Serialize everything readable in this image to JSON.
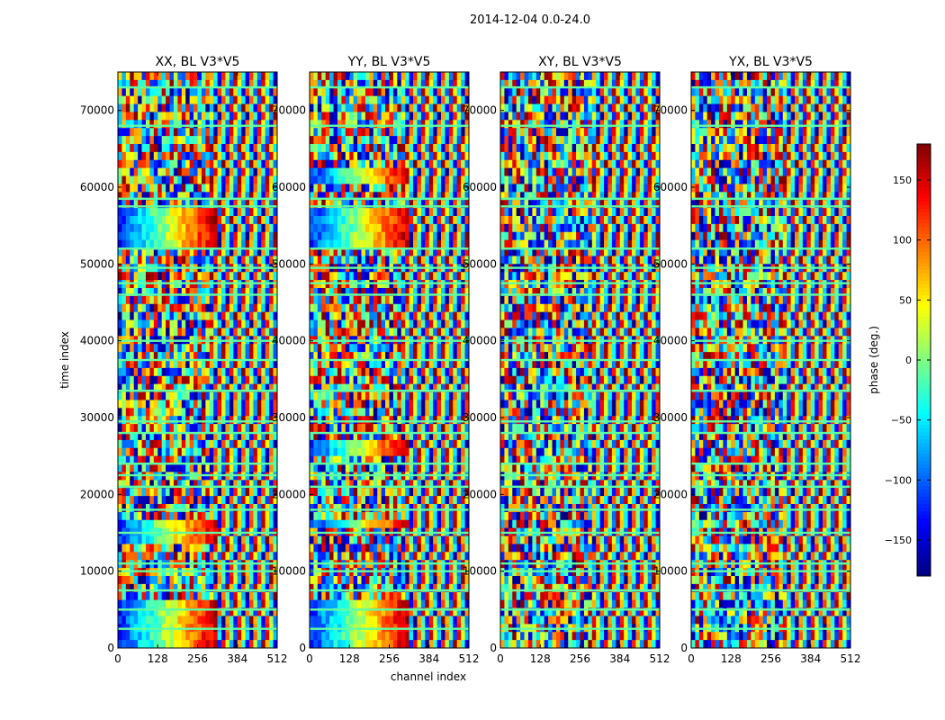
{
  "chart_data": {
    "type": "heatmap",
    "suptitle": "2014-12-04 0.0-24.0",
    "xlabel": "channel index",
    "ylabel": "time index",
    "xlim": [
      0,
      512
    ],
    "ylim": [
      0,
      75000
    ],
    "xticks": [
      0,
      128,
      256,
      384,
      512
    ],
    "yticks": [
      0,
      10000,
      20000,
      30000,
      40000,
      50000,
      60000,
      70000
    ],
    "panels": [
      {
        "title": "XX, BL V3*V5",
        "noise_bands": [
          [
            0,
            6000
          ],
          [
            13500,
            17000
          ],
          [
            52000,
            57500
          ]
        ],
        "noise_cmax": 320
      },
      {
        "title": "YY, BL V3*V5",
        "noise_bands": [
          [
            0,
            6000
          ],
          [
            15500,
            17000
          ],
          [
            25500,
            27500
          ],
          [
            52000,
            57500
          ],
          [
            60500,
            63000
          ]
        ],
        "noise_cmax": 320
      },
      {
        "title": "XY, BL V3*V5",
        "noise_bands": [],
        "noise_cmax": 0
      },
      {
        "title": "YX, BL V3*V5",
        "noise_bands": [],
        "noise_cmax": 0
      }
    ],
    "colorbar": {
      "label": "phase (deg.)",
      "min": -180,
      "max": 180,
      "ticks": [
        -150,
        -100,
        -50,
        0,
        50,
        100,
        150
      ],
      "tick_labels": [
        "−150",
        "−100",
        "−50",
        "0",
        "50",
        "100",
        "150"
      ],
      "colormap": "jet"
    },
    "flagged_rows": [
      2500,
      5000,
      7500,
      10000,
      11000,
      15000,
      18000,
      21000,
      22500,
      24000,
      28000,
      29500,
      33500,
      37500,
      40000,
      46000,
      47500,
      49500,
      52000,
      57500,
      58500,
      68000,
      73000
    ],
    "flag_color": "#62ffa0"
  }
}
